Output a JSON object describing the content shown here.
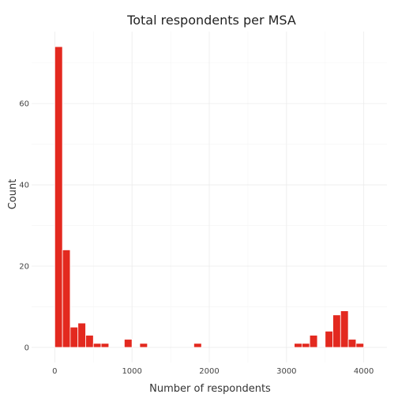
{
  "chart_data": {
    "type": "bar",
    "title": "Total respondents per MSA",
    "xlabel": "Number of respondents",
    "ylabel": "Count",
    "bar_color": "#e3291f",
    "bar_edge_color": "#ffffff",
    "grid": true,
    "xlim": [
      -300,
      4300
    ],
    "ylim": [
      -3.7,
      77.7
    ],
    "x_ticks": [
      0,
      1000,
      2000,
      3000,
      4000
    ],
    "y_ticks": [
      0,
      20,
      40,
      60
    ],
    "bin_width": 100,
    "bins": [
      {
        "x": 50,
        "count": 74
      },
      {
        "x": 150,
        "count": 24
      },
      {
        "x": 250,
        "count": 5
      },
      {
        "x": 350,
        "count": 6
      },
      {
        "x": 450,
        "count": 3
      },
      {
        "x": 550,
        "count": 1
      },
      {
        "x": 650,
        "count": 1
      },
      {
        "x": 950,
        "count": 2
      },
      {
        "x": 1150,
        "count": 1
      },
      {
        "x": 1850,
        "count": 1
      },
      {
        "x": 3150,
        "count": 1
      },
      {
        "x": 3250,
        "count": 1
      },
      {
        "x": 3350,
        "count": 3
      },
      {
        "x": 3550,
        "count": 4
      },
      {
        "x": 3650,
        "count": 8
      },
      {
        "x": 3750,
        "count": 9
      },
      {
        "x": 3850,
        "count": 2
      },
      {
        "x": 3950,
        "count": 1
      }
    ]
  }
}
